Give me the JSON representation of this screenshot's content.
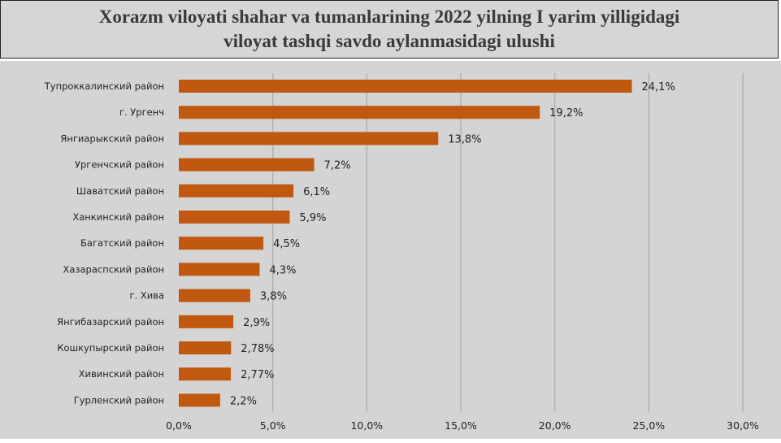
{
  "title": "Xorazm viloyati shahar va tumanlarining 2022 yilning I yarim yilligidagi\nviloyat tashqi savdo aylanmasidagi ulushi",
  "colors": {
    "bar": "#c0580f",
    "grid": "#aab2bc",
    "background": "#d4d4d4",
    "text": "#222222"
  },
  "chart_data": {
    "type": "bar",
    "orientation": "horizontal",
    "categories": [
      "Тупроккалинский район",
      "г. Ургенч",
      "Янгиарыкский район",
      "Ургенчский район",
      "Шаватский район",
      "Ханкинский район",
      "Багатский район",
      "Хазараспский район",
      "г. Хива",
      "Янгибазарский район",
      "Кошкупырский район",
      "Хивинский район",
      "Гурленский район"
    ],
    "values": [
      24.1,
      19.2,
      13.8,
      7.2,
      6.1,
      5.9,
      4.5,
      4.3,
      3.8,
      2.9,
      2.78,
      2.77,
      2.2
    ],
    "data_labels": [
      "24,1%",
      "19,2%",
      "13,8%",
      "7,2%",
      "6,1%",
      "5,9%",
      "4,5%",
      "4,3%",
      "3,8%",
      "2,9%",
      "2,78%",
      "2,77%",
      "2,2%"
    ],
    "xlim": [
      0,
      30
    ],
    "xticks": [
      0,
      5,
      10,
      15,
      20,
      25,
      30
    ],
    "xtick_labels": [
      "0,0%",
      "5,0%",
      "10,0%",
      "15,0%",
      "20,0%",
      "25,0%",
      "30,0%"
    ],
    "grid": true
  }
}
